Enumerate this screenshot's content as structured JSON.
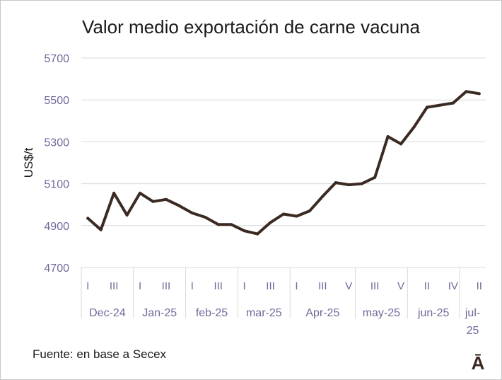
{
  "chart_data": {
    "type": "line",
    "title": "Valor medio exportación de carne vacuna",
    "ylabel": "US$/t",
    "ylim": [
      4700,
      5700
    ],
    "yticks": [
      "5700",
      "5500",
      "5300",
      "5100",
      "4900",
      "4700"
    ],
    "grid": "horizontal",
    "line_color": "#3a2a22",
    "grid_color": "#d9d9d9",
    "tick_color": "#6e6a9a",
    "months": [
      {
        "label": "Dec-24",
        "label_lines": [
          "Dec-24"
        ],
        "weeks": 4,
        "week_labels": [
          "I",
          "",
          "III",
          ""
        ]
      },
      {
        "label": "Jan-25",
        "label_lines": [
          "Jan-25"
        ],
        "weeks": 4,
        "week_labels": [
          "I",
          "",
          "III",
          ""
        ]
      },
      {
        "label": "feb-25",
        "label_lines": [
          "feb-25"
        ],
        "weeks": 4,
        "week_labels": [
          "I",
          "",
          "III",
          ""
        ]
      },
      {
        "label": "mar-25",
        "label_lines": [
          "mar-25"
        ],
        "weeks": 4,
        "week_labels": [
          "I",
          "",
          "III",
          ""
        ]
      },
      {
        "label": "Apr-25",
        "label_lines": [
          "Apr-25"
        ],
        "weeks": 5,
        "week_labels": [
          "I",
          "",
          "III",
          "",
          "V"
        ]
      },
      {
        "label": "may-25",
        "label_lines": [
          "may-25"
        ],
        "weeks": 4,
        "week_labels": [
          "",
          "III",
          "",
          "V"
        ]
      },
      {
        "label": "jun-25",
        "label_lines": [
          "jun-25"
        ],
        "weeks": 4,
        "week_labels": [
          "",
          "II",
          "",
          "IV"
        ]
      },
      {
        "label": "jul-25",
        "label_lines": [
          "jul-",
          "25"
        ],
        "weeks": 2,
        "week_labels": [
          "",
          "II"
        ]
      }
    ],
    "series": [
      {
        "values": [
          4935,
          4880,
          5055,
          4950,
          5055,
          5015,
          5025,
          4995,
          4960,
          4940,
          4905,
          4905,
          4875,
          4860,
          4915,
          4955,
          4945,
          4970,
          5040,
          5105,
          5095,
          5100,
          5130,
          5325,
          5290,
          5370,
          5465,
          5475,
          5485,
          5540,
          5530
        ]
      }
    ]
  },
  "footer": {
    "source": "Fuente: en base a Secex",
    "logo": "Ā"
  }
}
